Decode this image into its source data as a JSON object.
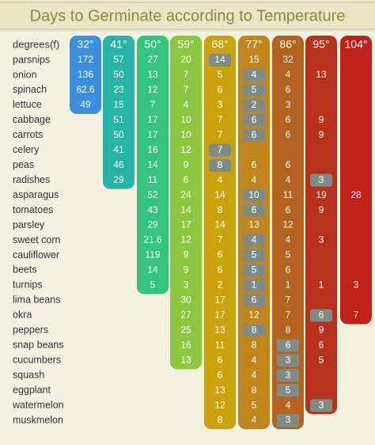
{
  "title": "Days to Germinate according to Temperature",
  "table": {
    "header": [
      "degrees(f)",
      "32°",
      "41°",
      "50°",
      "59°",
      "68°",
      "77°",
      "86°",
      "95°",
      "104°"
    ],
    "column_colors": [
      "#3b8fdc",
      "#27b3a6",
      "#35c47c",
      "#8dc63f",
      "#c9a20c",
      "#c0861c",
      "#b3621f",
      "#b6321d",
      "#c2201b"
    ],
    "highlight_color": "#7f8c86",
    "rows": [
      {
        "label": "parsnips",
        "values": [
          172,
          57,
          27,
          20,
          14,
          15,
          32,
          null,
          null
        ],
        "boxed": 4
      },
      {
        "label": "onion",
        "values": [
          136,
          50,
          13,
          7,
          5,
          4,
          4,
          13,
          null
        ],
        "boxed": 5
      },
      {
        "label": "spinach",
        "values": [
          62.6,
          23,
          12,
          7,
          6,
          5,
          6,
          null,
          null
        ],
        "boxed": 5
      },
      {
        "label": "lettuce",
        "values": [
          49,
          15,
          7,
          4,
          3,
          2,
          3,
          null,
          null
        ],
        "boxed": 5
      },
      {
        "label": "cabbage",
        "values": [
          null,
          51,
          17,
          10,
          7,
          6,
          6,
          9,
          null
        ],
        "boxed": 5
      },
      {
        "label": "carrots",
        "values": [
          null,
          50,
          17,
          10,
          7,
          6,
          6,
          9,
          null
        ],
        "boxed": 5
      },
      {
        "label": "celery",
        "values": [
          null,
          41,
          16,
          12,
          7,
          null,
          null,
          null,
          null
        ],
        "boxed": 4
      },
      {
        "label": "peas",
        "values": [
          null,
          46,
          14,
          9,
          8,
          6,
          6,
          null,
          null
        ],
        "boxed": 4
      },
      {
        "label": "radishes",
        "values": [
          null,
          29,
          11,
          6,
          4,
          4,
          4,
          3,
          null
        ],
        "boxed": 7
      },
      {
        "label": "asparagus",
        "values": [
          null,
          null,
          52,
          24,
          14,
          10,
          11,
          19,
          28
        ],
        "boxed": 5
      },
      {
        "label": "tomatoes",
        "values": [
          null,
          null,
          43,
          14,
          8,
          6,
          6,
          9,
          null
        ],
        "boxed": 5
      },
      {
        "label": "parsley",
        "values": [
          null,
          null,
          29,
          17,
          14,
          13,
          12,
          null,
          null
        ],
        "boxed": null
      },
      {
        "label": "sweet corn",
        "values": [
          null,
          null,
          21.6,
          12,
          7,
          4,
          4,
          3,
          null
        ],
        "boxed": 5
      },
      {
        "label": "cauliflower",
        "values": [
          null,
          null,
          119,
          9,
          6,
          5,
          5,
          null,
          null
        ],
        "boxed": 5
      },
      {
        "label": "beets",
        "values": [
          null,
          null,
          14,
          9,
          6,
          5,
          6,
          null,
          null
        ],
        "boxed": 5
      },
      {
        "label": "turnips",
        "values": [
          null,
          null,
          5,
          3,
          2,
          1,
          1,
          1,
          3
        ],
        "boxed": 5
      },
      {
        "label": "lima beans",
        "values": [
          null,
          null,
          null,
          30,
          17,
          6,
          7,
          null,
          null
        ],
        "boxed": 5
      },
      {
        "label": "okra",
        "values": [
          null,
          null,
          null,
          27,
          17,
          12,
          7,
          6,
          7
        ],
        "boxed": 7
      },
      {
        "label": "peppers",
        "values": [
          null,
          null,
          null,
          25,
          13,
          8,
          8,
          9,
          null
        ],
        "boxed": 5
      },
      {
        "label": "snap beans",
        "values": [
          null,
          null,
          null,
          16,
          11,
          8,
          6,
          6,
          null
        ],
        "boxed": 6
      },
      {
        "label": "cucumbers",
        "values": [
          null,
          null,
          null,
          13,
          6,
          4,
          3,
          5,
          null
        ],
        "boxed": 6
      },
      {
        "label": "squash",
        "values": [
          null,
          null,
          null,
          null,
          6,
          4,
          3,
          null,
          null
        ],
        "boxed": 6
      },
      {
        "label": "eggplant",
        "values": [
          null,
          null,
          null,
          null,
          13,
          8,
          5,
          null,
          null
        ],
        "boxed": 6
      },
      {
        "label": "watermelon",
        "values": [
          null,
          null,
          null,
          null,
          12,
          5,
          4,
          3,
          null
        ],
        "boxed": 7
      },
      {
        "label": "muskmelon",
        "values": [
          null,
          null,
          null,
          null,
          8,
          4,
          3,
          null,
          null
        ],
        "boxed": 6
      }
    ]
  }
}
